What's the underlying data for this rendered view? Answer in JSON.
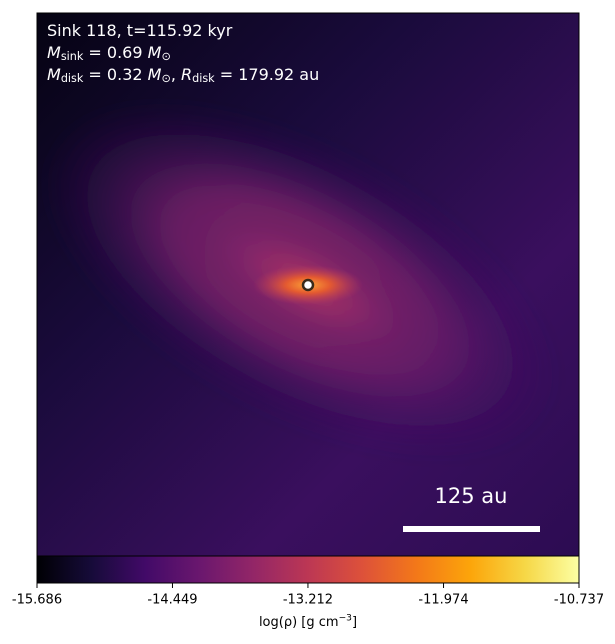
{
  "chart_data": {
    "type": "heatmap",
    "colormap": "inferno",
    "annotation_lines": [
      [
        {
          "text": "Sink 118, t=115.92 kyr"
        }
      ],
      [
        {
          "text": "M",
          "italic": true
        },
        {
          "text": "sink",
          "sub": true
        },
        {
          "text": " = 0.69 "
        },
        {
          "text": "M",
          "italic": true
        },
        {
          "text": "⊙",
          "sub": true
        }
      ],
      [
        {
          "text": "M",
          "italic": true
        },
        {
          "text": "disk",
          "sub": true
        },
        {
          "text": " = 0.32 "
        },
        {
          "text": "M",
          "italic": true
        },
        {
          "text": "⊙",
          "sub": true
        },
        {
          "text": ", "
        },
        {
          "text": "R",
          "italic": true
        },
        {
          "text": "disk",
          "sub": true
        },
        {
          "text": " = 179.92 au"
        }
      ]
    ],
    "scale_bar_label": "125 au",
    "colorbar_label": [
      {
        "text": "log(ρ) [g cm"
      },
      {
        "text": "−3",
        "sup": true
      },
      {
        "text": "]"
      }
    ],
    "clim": [
      -15.686,
      -10.737
    ],
    "cticks": [
      -15.686,
      -14.449,
      -13.212,
      -11.974,
      -10.737
    ]
  }
}
